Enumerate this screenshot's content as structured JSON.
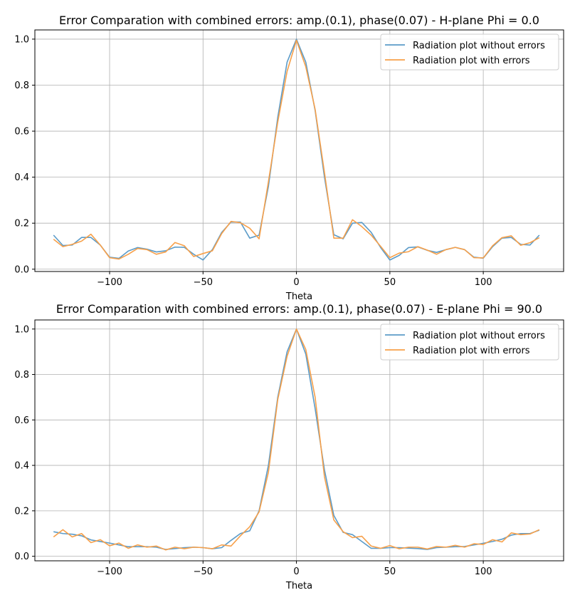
{
  "colors": {
    "series_without": "#5b9bc8",
    "series_with": "#f7a04a",
    "grid": "#b0b0b0",
    "axis": "#000000"
  },
  "chart_data": [
    {
      "type": "line",
      "title": "Error Comparation with combined errors: amp.(0.1), phase(0.07) - H-plane Phi = 0.0",
      "xlabel": "Theta",
      "ylabel": "",
      "xlim": [
        -140,
        143
      ],
      "ylim": [
        -0.01,
        1.04
      ],
      "xticks": [
        -100,
        -50,
        0,
        50,
        100
      ],
      "xtick_labels": [
        "−100",
        "−50",
        "0",
        "50",
        "100"
      ],
      "yticks": [
        0.0,
        0.2,
        0.4,
        0.6,
        0.8,
        1.0
      ],
      "ytick_labels": [
        "0.0",
        "0.2",
        "0.4",
        "0.6",
        "0.8",
        "1.0"
      ],
      "grid": true,
      "legend_position": "upper right",
      "x": [
        -130,
        -125,
        -120,
        -115,
        -110,
        -105,
        -100,
        -95,
        -90,
        -85,
        -80,
        -75,
        -70,
        -65,
        -60,
        -55,
        -50,
        -45,
        -40,
        -35,
        -30,
        -25,
        -20,
        -15,
        -10,
        -5,
        0,
        5,
        10,
        15,
        20,
        25,
        30,
        35,
        40,
        45,
        50,
        55,
        60,
        65,
        70,
        75,
        80,
        85,
        90,
        95,
        100,
        105,
        110,
        115,
        120,
        125,
        130
      ],
      "series": [
        {
          "name": "Radiation plot without errors",
          "values": [
            0.148,
            0.103,
            0.105,
            0.138,
            0.138,
            0.105,
            0.052,
            0.047,
            0.079,
            0.094,
            0.087,
            0.075,
            0.08,
            0.096,
            0.095,
            0.065,
            0.04,
            0.085,
            0.16,
            0.205,
            0.205,
            0.135,
            0.148,
            0.36,
            0.66,
            0.9,
            1.0,
            0.9,
            0.69,
            0.4,
            0.15,
            0.132,
            0.2,
            0.203,
            0.16,
            0.095,
            0.04,
            0.06,
            0.094,
            0.097,
            0.082,
            0.073,
            0.085,
            0.095,
            0.085,
            0.052,
            0.048,
            0.098,
            0.135,
            0.138,
            0.108,
            0.105,
            0.148
          ]
        },
        {
          "name": "Radiation plot with errors",
          "values": [
            0.13,
            0.098,
            0.108,
            0.122,
            0.152,
            0.105,
            0.05,
            0.044,
            0.065,
            0.09,
            0.085,
            0.065,
            0.075,
            0.116,
            0.102,
            0.055,
            0.068,
            0.08,
            0.155,
            0.208,
            0.202,
            0.178,
            0.132,
            0.38,
            0.64,
            0.86,
            0.995,
            0.88,
            0.695,
            0.42,
            0.135,
            0.135,
            0.215,
            0.185,
            0.148,
            0.1,
            0.05,
            0.07,
            0.076,
            0.098,
            0.083,
            0.065,
            0.085,
            0.095,
            0.085,
            0.05,
            0.049,
            0.102,
            0.137,
            0.145,
            0.104,
            0.115,
            0.137
          ]
        }
      ]
    },
    {
      "type": "line",
      "title": "Error Comparation with combined errors: amp.(0.1), phase(0.07) - E-plane Phi = 90.0",
      "xlabel": "Theta",
      "ylabel": "",
      "xlim": [
        -140,
        143
      ],
      "ylim": [
        -0.02,
        1.04
      ],
      "xticks": [
        -100,
        -50,
        0,
        50,
        100
      ],
      "xtick_labels": [
        "−100",
        "−50",
        "0",
        "50",
        "100"
      ],
      "yticks": [
        0.0,
        0.2,
        0.4,
        0.6,
        0.8,
        1.0
      ],
      "ytick_labels": [
        "0.0",
        "0.2",
        "0.4",
        "0.6",
        "0.8",
        "1.0"
      ],
      "grid": true,
      "legend_position": "upper right",
      "x": [
        -130,
        -125,
        -120,
        -115,
        -110,
        -105,
        -100,
        -95,
        -90,
        -85,
        -80,
        -75,
        -70,
        -65,
        -60,
        -55,
        -50,
        -45,
        -40,
        -35,
        -30,
        -25,
        -20,
        -15,
        -10,
        -5,
        0,
        5,
        10,
        15,
        20,
        25,
        30,
        35,
        40,
        45,
        50,
        55,
        60,
        65,
        70,
        75,
        80,
        85,
        90,
        95,
        100,
        105,
        110,
        115,
        120,
        125,
        130
      ],
      "series": [
        {
          "name": "Radiation plot without errors",
          "values": [
            0.108,
            0.1,
            0.097,
            0.09,
            0.072,
            0.065,
            0.058,
            0.05,
            0.042,
            0.042,
            0.042,
            0.04,
            0.03,
            0.034,
            0.038,
            0.04,
            0.038,
            0.033,
            0.038,
            0.07,
            0.1,
            0.112,
            0.2,
            0.4,
            0.7,
            0.9,
            1.0,
            0.89,
            0.65,
            0.38,
            0.18,
            0.105,
            0.095,
            0.065,
            0.035,
            0.035,
            0.038,
            0.038,
            0.036,
            0.034,
            0.03,
            0.038,
            0.04,
            0.042,
            0.043,
            0.05,
            0.057,
            0.065,
            0.075,
            0.093,
            0.1,
            0.1,
            0.115
          ]
        },
        {
          "name": "Radiation plot with errors",
          "values": [
            0.085,
            0.117,
            0.085,
            0.1,
            0.06,
            0.073,
            0.046,
            0.058,
            0.035,
            0.05,
            0.04,
            0.045,
            0.028,
            0.04,
            0.033,
            0.04,
            0.038,
            0.033,
            0.05,
            0.045,
            0.09,
            0.13,
            0.195,
            0.37,
            0.69,
            0.88,
            1.0,
            0.91,
            0.7,
            0.35,
            0.16,
            0.108,
            0.082,
            0.088,
            0.045,
            0.035,
            0.047,
            0.033,
            0.04,
            0.04,
            0.032,
            0.043,
            0.04,
            0.048,
            0.04,
            0.055,
            0.052,
            0.073,
            0.063,
            0.103,
            0.095,
            0.098,
            0.117
          ]
        }
      ]
    }
  ]
}
